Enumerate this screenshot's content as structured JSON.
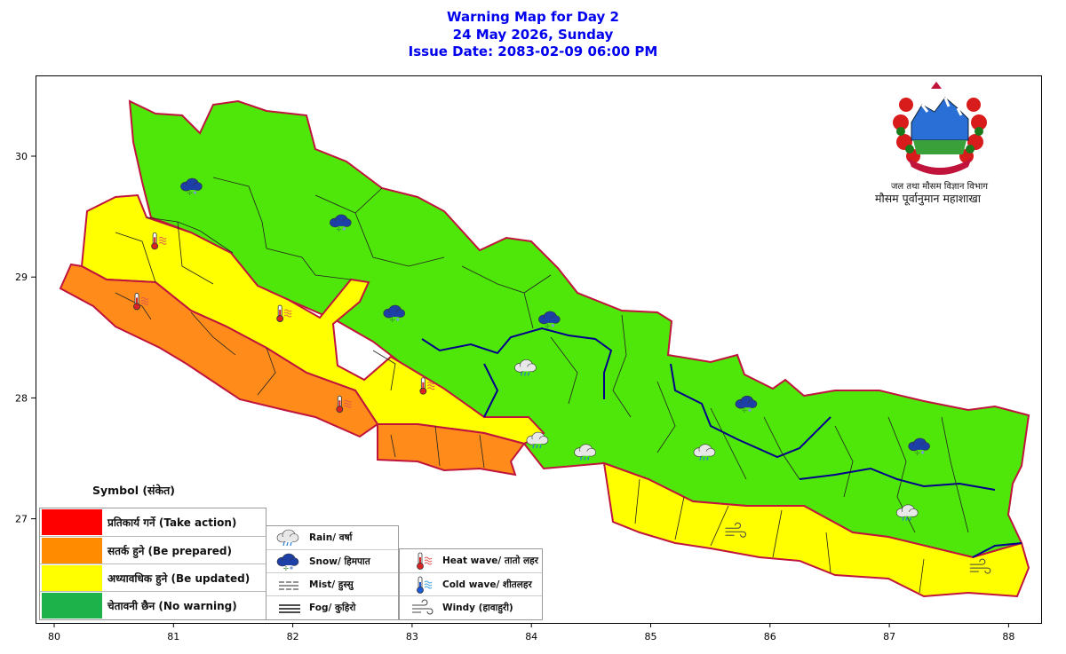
{
  "title": {
    "line1": "Warning Map for Day 2",
    "line2": "24 May 2026, Sunday",
    "line3": "Issue Date: 2083-02-09 06:00 PM"
  },
  "axes": {
    "x_ticks": [
      "80",
      "81",
      "82",
      "83",
      "84",
      "85",
      "86",
      "87",
      "88"
    ],
    "y_ticks": [
      "30",
      "29",
      "28",
      "27"
    ]
  },
  "emblem": {
    "line1": "जल तथा मौसम विज्ञान विभाग",
    "line2": "मौसम पूर्वानुमान महाशाखा"
  },
  "legend": {
    "title": "Symbol (संकेत)",
    "severity": [
      {
        "label": "प्रतिकार्य गर्ने (Take action)",
        "color": "#ff0000"
      },
      {
        "label": "सतर्क हुने (Be prepared)",
        "color": "#ff8c00"
      },
      {
        "label": "अध्यावधिक हुने (Be updated)",
        "color": "#ffff00"
      },
      {
        "label": "चेतावनी छैन (No warning)",
        "color": "#1db34a"
      }
    ],
    "symbols_col1": [
      {
        "label": "Rain/ वर्षा",
        "icon": "rain-cloud-icon"
      },
      {
        "label": "Snow/ हिमपात",
        "icon": "snow-cloud-icon"
      },
      {
        "label": "Mist/ हुस्सु",
        "icon": "mist-icon"
      },
      {
        "label": "Fog/ कुहिरो",
        "icon": "fog-icon"
      }
    ],
    "symbols_col2": [
      {
        "label": "Heat wave/ तातो लहर",
        "icon": "heat-wave-icon"
      },
      {
        "label": "Cold wave/ शीतलहर",
        "icon": "cold-wave-icon"
      },
      {
        "label": "Windy (हावाहुरी)",
        "icon": "windy-icon"
      }
    ]
  },
  "map_colors": {
    "green": "#4fe60a",
    "yellow": "#ffff00",
    "orange": "#ff8c1a",
    "province_border": "#c0143c",
    "basin_border": "#00008b"
  },
  "map_markers": [
    {
      "icon": "snow-cloud-icon",
      "lon": 81.15,
      "lat": 29.75
    },
    {
      "icon": "snow-cloud-icon",
      "lon": 82.4,
      "lat": 29.45
    },
    {
      "icon": "snow-cloud-icon",
      "lon": 82.85,
      "lat": 28.7
    },
    {
      "icon": "snow-cloud-icon",
      "lon": 84.15,
      "lat": 28.65
    },
    {
      "icon": "snow-cloud-icon",
      "lon": 85.8,
      "lat": 27.95
    },
    {
      "icon": "snow-cloud-icon",
      "lon": 87.25,
      "lat": 27.6
    },
    {
      "icon": "heat-wave-icon",
      "lon": 80.85,
      "lat": 29.3
    },
    {
      "icon": "heat-wave-icon",
      "lon": 80.7,
      "lat": 28.8
    },
    {
      "icon": "heat-wave-icon",
      "lon": 81.9,
      "lat": 28.7
    },
    {
      "icon": "heat-wave-icon",
      "lon": 83.1,
      "lat": 28.1
    },
    {
      "icon": "heat-wave-icon",
      "lon": 82.4,
      "lat": 27.95
    },
    {
      "icon": "rain-cloud-icon",
      "lon": 83.95,
      "lat": 28.25
    },
    {
      "icon": "rain-cloud-icon",
      "lon": 84.05,
      "lat": 27.65
    },
    {
      "icon": "rain-cloud-icon",
      "lon": 84.45,
      "lat": 27.55
    },
    {
      "icon": "rain-cloud-icon",
      "lon": 85.45,
      "lat": 27.55
    },
    {
      "icon": "rain-cloud-icon",
      "lon": 87.15,
      "lat": 27.05
    },
    {
      "icon": "windy-icon",
      "lon": 85.7,
      "lat": 26.9
    },
    {
      "icon": "windy-icon",
      "lon": 87.75,
      "lat": 26.6
    }
  ]
}
